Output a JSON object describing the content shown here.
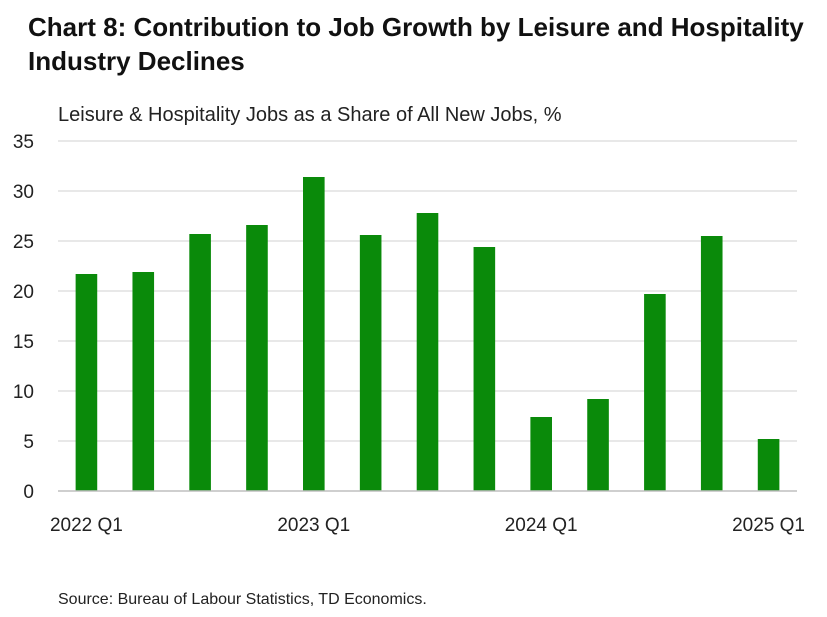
{
  "title": "Chart 8: Contribution to Job Growth by Leisure and Hospitality Industry Declines",
  "subtitle": "Leisure & Hospitality Jobs as a Share of All New Jobs, %",
  "source": "Source: Bureau of Labour Statistics, TD Economics.",
  "colors": {
    "bar": "#0a8a0a",
    "grid": "#d9d9d9",
    "axis": "#bfbfbf"
  },
  "chart_data": {
    "type": "bar",
    "categories": [
      "2022 Q1",
      "2022 Q2",
      "2022 Q3",
      "2022 Q4",
      "2023 Q1",
      "2023 Q2",
      "2023 Q3",
      "2023 Q4",
      "2024 Q1",
      "2024 Q2",
      "2024 Q3",
      "2024 Q4",
      "2025 Q1"
    ],
    "x_tick_labels": [
      "2022 Q1",
      "2023 Q1",
      "2024 Q1",
      "2025 Q1"
    ],
    "values": [
      21.7,
      21.9,
      25.7,
      26.6,
      31.4,
      25.6,
      27.8,
      24.4,
      7.4,
      9.2,
      19.7,
      25.5,
      5.2
    ],
    "y_ticks": [
      0,
      5,
      10,
      15,
      20,
      25,
      30,
      35
    ],
    "ylim": [
      0,
      35
    ],
    "grid": true,
    "legend": "none"
  }
}
